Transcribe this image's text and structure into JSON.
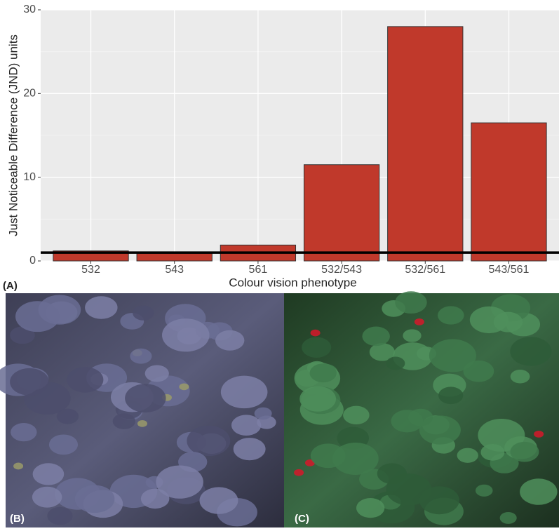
{
  "chart_data": {
    "type": "bar",
    "panel_label": "(A)",
    "x_label": "Colour vision phenotype",
    "y_label": "Just Noticeable Difference (JND) units",
    "categories": [
      "532",
      "543",
      "561",
      "532/543",
      "532/561",
      "543/561"
    ],
    "values": [
      1.2,
      0.9,
      1.9,
      11.5,
      28,
      16.5
    ],
    "color": "#c0392b",
    "ylim": [
      0,
      30
    ],
    "yticks": [
      0,
      10,
      20,
      30
    ],
    "grid": true,
    "hline": 1
  },
  "photos": [
    {
      "label": "(B)"
    },
    {
      "label": "(C)"
    }
  ]
}
